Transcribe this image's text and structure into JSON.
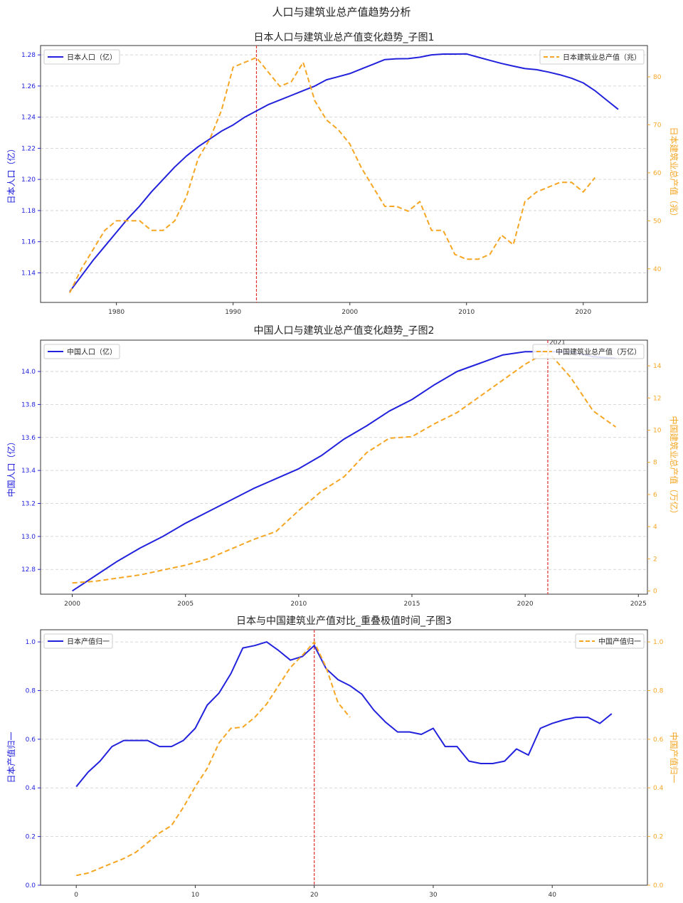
{
  "figure_title": "人口与建筑业总产值趋势分析",
  "colors": {
    "left_series": "#2222dd",
    "right_series": "#f5a623",
    "marker_line": "#e03030",
    "grid": "#cccccc"
  },
  "chart_data": [
    {
      "type": "line",
      "title": "日本人口与建筑业总产值变化趋势_子图1",
      "xlim": [
        1973.5,
        2025.5
      ],
      "xticks": [
        1980,
        1990,
        2000,
        2010,
        2020
      ],
      "grid": true,
      "vline": {
        "x": 1992
      },
      "left_axis": {
        "label": "日本人口（亿）",
        "ylim": [
          1.121,
          1.286
        ],
        "ticks": [
          1.14,
          1.16,
          1.18,
          1.2,
          1.22,
          1.24,
          1.26,
          1.28
        ],
        "tick_labels": [
          "1.14",
          "1.16",
          "1.18",
          "1.20",
          "1.22",
          "1.24",
          "1.26",
          "1.28"
        ]
      },
      "right_axis": {
        "label": "日本建筑业总产值（兆）",
        "ylim": [
          33,
          86.5
        ],
        "ticks": [
          40,
          50,
          60,
          70,
          80
        ],
        "tick_labels": [
          "40",
          "50",
          "60",
          "70",
          "80"
        ]
      },
      "series": [
        {
          "name": "日本人口（亿）",
          "axis": "left",
          "style": "solid",
          "x": [
            1976,
            1977,
            1978,
            1979,
            1980,
            1981,
            1982,
            1983,
            1984,
            1985,
            1986,
            1987,
            1988,
            1989,
            1990,
            1991,
            1992,
            1993,
            1994,
            1995,
            1996,
            1997,
            1998,
            1999,
            2000,
            2001,
            2002,
            2003,
            2004,
            2005,
            2006,
            2007,
            2008,
            2009,
            2010,
            2011,
            2012,
            2013,
            2014,
            2015,
            2016,
            2017,
            2018,
            2019,
            2020,
            2021,
            2022,
            2023
          ],
          "values": [
            1.128,
            1.138,
            1.148,
            1.157,
            1.166,
            1.175,
            1.183,
            1.192,
            1.2,
            1.208,
            1.215,
            1.221,
            1.226,
            1.231,
            1.235,
            1.24,
            1.244,
            1.248,
            1.251,
            1.254,
            1.257,
            1.26,
            1.264,
            1.266,
            1.268,
            1.271,
            1.274,
            1.277,
            1.2775,
            1.2776,
            1.2785,
            1.28,
            1.2805,
            1.2805,
            1.2806,
            1.2785,
            1.2765,
            1.2745,
            1.2728,
            1.2712,
            1.2705,
            1.269,
            1.2672,
            1.265,
            1.262,
            1.257,
            1.251,
            1.245
          ]
        },
        {
          "name": "日本建筑业总产值（兆）",
          "axis": "right",
          "style": "dashed",
          "x": [
            1976,
            1977,
            1978,
            1979,
            1980,
            1981,
            1982,
            1983,
            1984,
            1985,
            1986,
            1987,
            1988,
            1989,
            1990,
            1991,
            1992,
            1993,
            1994,
            1995,
            1996,
            1997,
            1998,
            1999,
            2000,
            2001,
            2002,
            2003,
            2004,
            2005,
            2006,
            2007,
            2008,
            2009,
            2010,
            2011,
            2012,
            2013,
            2014,
            2015,
            2016,
            2017,
            2018,
            2019,
            2020,
            2021
          ],
          "values": [
            35,
            40,
            44,
            48,
            50,
            50,
            50,
            48,
            48,
            50,
            55,
            63,
            67,
            73,
            82,
            83,
            84,
            81,
            78,
            79,
            83,
            75,
            71,
            69,
            66,
            61,
            57,
            53,
            53,
            52,
            54,
            48,
            48,
            43,
            42,
            42,
            43,
            47,
            45,
            54,
            56,
            57,
            58,
            58,
            56,
            59
          ]
        }
      ],
      "legend": {
        "left": "top-left",
        "right": "top-right"
      }
    },
    {
      "type": "line",
      "title": "中国人口与建筑业总产值变化趋势_子图2",
      "xlim": [
        1998.6,
        2025.4
      ],
      "xticks": [
        2000,
        2005,
        2010,
        2015,
        2020,
        2025
      ],
      "grid": true,
      "vline": {
        "x": 2021,
        "label": "2021"
      },
      "left_axis": {
        "label": "中国人口（亿）",
        "ylim": [
          12.65,
          14.19
        ],
        "ticks": [
          12.8,
          13.0,
          13.2,
          13.4,
          13.6,
          13.8,
          14.0
        ],
        "tick_labels": [
          "12.8",
          "13.0",
          "13.2",
          "13.4",
          "13.6",
          "13.8",
          "14.0"
        ]
      },
      "right_axis": {
        "label": "中国建筑业总产值（万亿）",
        "ylim": [
          -0.2,
          15.6
        ],
        "ticks": [
          0,
          2,
          4,
          6,
          8,
          10,
          12,
          14
        ],
        "tick_labels": [
          "0",
          "2",
          "4",
          "6",
          "8",
          "10",
          "12",
          "14"
        ]
      },
      "series": [
        {
          "name": "中国人口（亿）",
          "axis": "left",
          "style": "solid",
          "x": [
            2000,
            2001,
            2002,
            2003,
            2004,
            2005,
            2006,
            2007,
            2008,
            2009,
            2010,
            2011,
            2012,
            2013,
            2014,
            2015,
            2016,
            2017,
            2018,
            2019,
            2020,
            2021,
            2022,
            2023,
            2024
          ],
          "values": [
            12.67,
            12.76,
            12.85,
            12.93,
            13.0,
            13.08,
            13.15,
            13.22,
            13.29,
            13.35,
            13.41,
            13.49,
            13.59,
            13.67,
            13.76,
            13.83,
            13.92,
            14.0,
            14.05,
            14.1,
            14.12,
            14.12,
            14.12,
            14.09,
            14.08
          ]
        },
        {
          "name": "中国建筑业总产值（万亿）",
          "axis": "right",
          "style": "dashed",
          "x": [
            2000,
            2001,
            2002,
            2003,
            2004,
            2005,
            2006,
            2007,
            2008,
            2009,
            2010,
            2011,
            2012,
            2013,
            2014,
            2015,
            2016,
            2017,
            2018,
            2019,
            2020,
            2021,
            2022,
            2023,
            2024
          ],
          "values": [
            0.5,
            0.6,
            0.8,
            1.0,
            1.3,
            1.6,
            2.0,
            2.6,
            3.2,
            3.7,
            5.0,
            6.2,
            7.1,
            8.6,
            9.5,
            9.6,
            10.4,
            11.1,
            12.1,
            13.1,
            14.1,
            14.9,
            13.3,
            11.2,
            10.2
          ]
        }
      ],
      "legend": {
        "left": "top-left",
        "right": "top-right"
      }
    },
    {
      "type": "line",
      "title": "日本与中国建筑业产值对比_重叠极值时间_子图3",
      "xlim": [
        -3.0,
        48.0
      ],
      "xticks": [
        0,
        10,
        20,
        30,
        40
      ],
      "grid": true,
      "vline": {
        "x": 20
      },
      "left_axis": {
        "label": "日本产值归一",
        "ylim": [
          0.0,
          1.05
        ],
        "ticks": [
          0.0,
          0.2,
          0.4,
          0.6,
          0.8,
          1.0
        ],
        "tick_labels": [
          "0.0",
          "0.2",
          "0.4",
          "0.6",
          "0.8",
          "1.0"
        ]
      },
      "right_axis": {
        "label": "中国产值归一",
        "ylim": [
          0.0,
          1.05
        ],
        "ticks": [
          0.0,
          0.2,
          0.4,
          0.6,
          0.8,
          1.0
        ],
        "tick_labels": [
          "0.0",
          "0.2",
          "0.4",
          "0.6",
          "0.8",
          "1.0"
        ]
      },
      "series": [
        {
          "name": "日本产值归一",
          "axis": "left",
          "style": "solid",
          "x": [
            0,
            1,
            2,
            3,
            4,
            5,
            6,
            7,
            8,
            9,
            10,
            11,
            12,
            13,
            14,
            15,
            16,
            17,
            18,
            19,
            20,
            21,
            22,
            23,
            24,
            25,
            26,
            27,
            28,
            29,
            30,
            31,
            32,
            33,
            34,
            35,
            36,
            37,
            38,
            39,
            40,
            41,
            42,
            43,
            44,
            45
          ],
          "values": [
            0.405,
            0.465,
            0.51,
            0.57,
            0.595,
            0.595,
            0.595,
            0.57,
            0.57,
            0.595,
            0.645,
            0.74,
            0.79,
            0.87,
            0.975,
            0.985,
            1.0,
            0.965,
            0.925,
            0.94,
            0.985,
            0.89,
            0.845,
            0.82,
            0.785,
            0.72,
            0.67,
            0.63,
            0.63,
            0.62,
            0.645,
            0.57,
            0.57,
            0.51,
            0.5,
            0.5,
            0.51,
            0.56,
            0.535,
            0.645,
            0.665,
            0.68,
            0.69,
            0.69,
            0.665,
            0.705
          ]
        },
        {
          "name": "中国产值归一",
          "axis": "right",
          "style": "dashed",
          "x": [
            0,
            1,
            2,
            3,
            4,
            5,
            6,
            7,
            8,
            9,
            10,
            11,
            12,
            13,
            14,
            15,
            16,
            17,
            18,
            19,
            20,
            21,
            22,
            23
          ],
          "values": [
            0.04,
            0.05,
            0.07,
            0.09,
            0.11,
            0.135,
            0.175,
            0.215,
            0.245,
            0.32,
            0.405,
            0.48,
            0.585,
            0.645,
            0.65,
            0.69,
            0.745,
            0.82,
            0.895,
            0.945,
            1.0,
            0.895,
            0.75,
            0.69
          ]
        }
      ],
      "legend": {
        "left": "top-left",
        "right": "top-right"
      }
    }
  ]
}
